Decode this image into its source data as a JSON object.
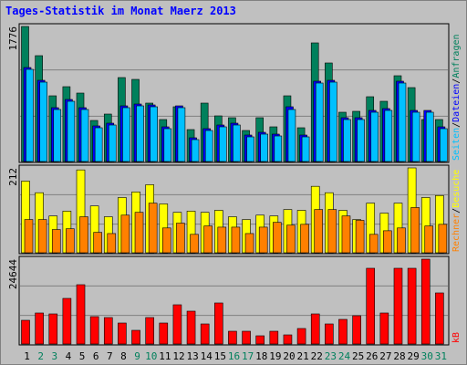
{
  "title": "Tages-Statistik im Monat Maerz 2013",
  "chart_data": [
    {
      "type": "bar",
      "ylim": [
        0,
        1776
      ],
      "yticks": [
        1776
      ],
      "separator": "/",
      "series": [
        {
          "name": "Anfragen",
          "color": "#00805c",
          "values": [
            1776,
            1392,
            864,
            984,
            900,
            540,
            624,
            1104,
            1080,
            768,
            552,
            720,
            420,
            768,
            600,
            576,
            408,
            576,
            456,
            864,
            444,
            1560,
            1296,
            648,
            660,
            852,
            792,
            1128,
            972,
            552,
            552
          ]
        },
        {
          "name": "Dateien",
          "color": "#0000ff",
          "values": [
            1236,
            1068,
            708,
            816,
            708,
            468,
            504,
            732,
            756,
            744,
            456,
            732,
            312,
            432,
            480,
            504,
            348,
            384,
            360,
            720,
            348,
            1056,
            1068,
            576,
            576,
            672,
            696,
            1056,
            672,
            672,
            456
          ]
        },
        {
          "name": "Seiten",
          "color": "#00c0ff",
          "values": [
            1212,
            1044,
            684,
            792,
            684,
            444,
            480,
            708,
            732,
            720,
            432,
            708,
            288,
            408,
            456,
            480,
            324,
            360,
            336,
            684,
            324,
            1032,
            1044,
            552,
            552,
            648,
            672,
            1032,
            648,
            648,
            432
          ]
        }
      ]
    },
    {
      "type": "bar",
      "ylim": [
        0,
        212
      ],
      "yticks": [
        212
      ],
      "separator": "/",
      "series": [
        {
          "name": "Besuche",
          "color": "#ffff00",
          "values": [
            179,
            150,
            92,
            104,
            207,
            117,
            90,
            138,
            152,
            170,
            122,
            101,
            104,
            101,
            106,
            90,
            83,
            94,
            92,
            108,
            106,
            166,
            150,
            106,
            83,
            124,
            99,
            124,
            212,
            138,
            143
          ]
        },
        {
          "name": "Rechner",
          "color": "#ff8000",
          "values": [
            83,
            83,
            58,
            60,
            90,
            51,
            48,
            94,
            101,
            124,
            62,
            74,
            46,
            67,
            64,
            64,
            48,
            64,
            76,
            69,
            71,
            108,
            108,
            92,
            81,
            46,
            55,
            62,
            113,
            67,
            71
          ]
        }
      ]
    },
    {
      "type": "bar",
      "ylim": [
        0,
        24644
      ],
      "yticks": [
        24644
      ],
      "categories": [
        "1",
        "2",
        "3",
        "4",
        "5",
        "6",
        "7",
        "8",
        "9",
        "10",
        "11",
        "12",
        "13",
        "14",
        "15",
        "16",
        "17",
        "18",
        "19",
        "20",
        "21",
        "22",
        "23",
        "24",
        "25",
        "26",
        "27",
        "28",
        "29",
        "30",
        "31"
      ],
      "category_colors": [
        "#000000",
        "#00805c",
        "#00805c",
        "#000000",
        "#000000",
        "#000000",
        "#000000",
        "#000000",
        "#00805c",
        "#00805c",
        "#000000",
        "#000000",
        "#000000",
        "#000000",
        "#000000",
        "#00805c",
        "#00805c",
        "#000000",
        "#000000",
        "#000000",
        "#000000",
        "#000000",
        "#00805c",
        "#00805c",
        "#000000",
        "#000000",
        "#000000",
        "#000000",
        "#000000",
        "#00805c",
        "#00805c"
      ],
      "series": [
        {
          "name": "kB",
          "color": "#ff0000",
          "values": [
            6890,
            9010,
            8745,
            13250,
            17225,
            7950,
            7685,
            6095,
            3975,
            7685,
            6095,
            11395,
            9540,
            5830,
            11925,
            3710,
            3710,
            2385,
            3710,
            2650,
            4505,
            8745,
            5830,
            7155,
            8215,
            21995,
            9010,
            21995,
            21995,
            24644,
            14840
          ]
        }
      ]
    }
  ]
}
